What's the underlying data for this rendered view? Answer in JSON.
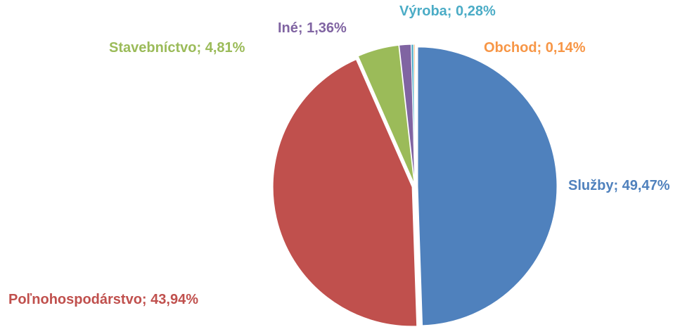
{
  "chart_data": {
    "type": "pie",
    "values": [
      49.47,
      43.94,
      4.81,
      1.36,
      0.28,
      0.14
    ],
    "value_labels": [
      "Služby; 49,47%",
      "Poľnohospodárstvo; 43,94%",
      "Stavebníctvo; 4,81%",
      "Iné; 1,36%",
      "Výroba; 0,28%",
      "Obchod; 0,14%"
    ],
    "colors": [
      "#4f81bd",
      "#c0504d",
      "#9bbb59",
      "#8064a2",
      "#4bacc6",
      "#f79646"
    ]
  }
}
